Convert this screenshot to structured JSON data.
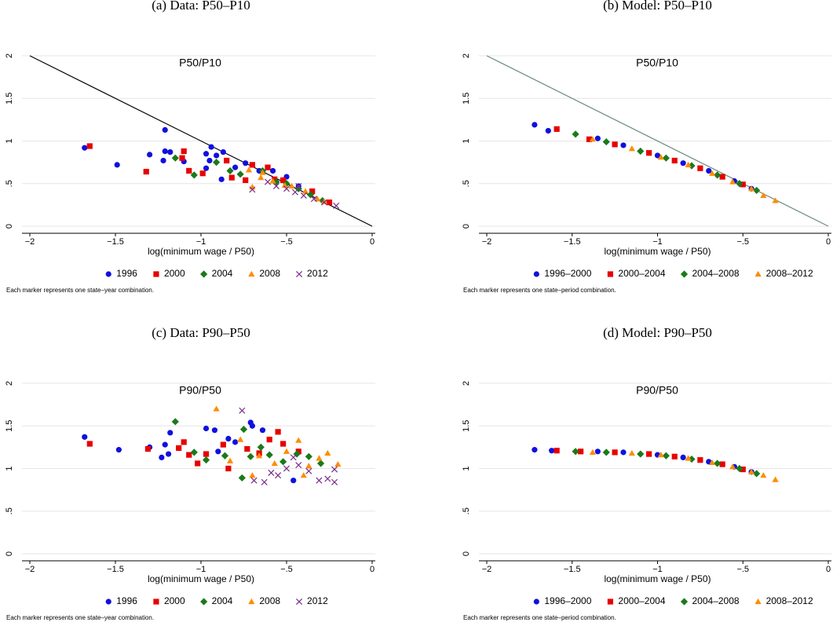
{
  "chart_data": [
    {
      "type": "scatter",
      "title": "(a) Data: P50–P10",
      "inner_label": "P50/P10",
      "xlabel": "log(minimum wage / P50)",
      "note": "Each marker represents one state–year combination.",
      "xlim": [
        -2,
        0
      ],
      "ylim": [
        0,
        2
      ],
      "xticks": [
        {
          "value": -2,
          "label": "−2"
        },
        {
          "value": -1.5,
          "label": "−1.5"
        },
        {
          "value": -1,
          "label": "−1"
        },
        {
          "value": -0.5,
          "label": "−.5"
        },
        0
      ],
      "yticks": [
        0,
        {
          "value": 0.5,
          "label": ".5"
        },
        1,
        1.5,
        2
      ],
      "grid": true,
      "reference_line": {
        "x": [
          -2,
          0
        ],
        "y": [
          2,
          0
        ],
        "color": "#000000"
      },
      "series": [
        {
          "name": "1996",
          "color": "#1010e0",
          "marker": "circle",
          "x": [
            -1.68,
            -1.49,
            -1.3,
            -1.22,
            -1.21,
            -1.21,
            -1.18,
            -1.1,
            -0.97,
            -0.95,
            -0.94,
            -0.91,
            -0.87,
            -0.88,
            -0.8,
            -0.74,
            -0.66,
            -0.58,
            -0.5,
            -0.43,
            -0.97
          ],
          "y": [
            0.92,
            0.72,
            0.84,
            0.77,
            1.13,
            0.88,
            0.87,
            0.76,
            0.85,
            0.77,
            0.93,
            0.83,
            0.87,
            0.55,
            0.69,
            0.74,
            0.65,
            0.65,
            0.58,
            0.47,
            0.68
          ]
        },
        {
          "name": "2000",
          "color": "#e80000",
          "marker": "square",
          "x": [
            -1.65,
            -1.32,
            -1.1,
            -1.11,
            -1.07,
            -0.99,
            -0.85,
            -0.82,
            -0.7,
            -0.74,
            -0.61,
            -0.57,
            -0.52,
            -0.35,
            -0.25
          ],
          "y": [
            0.94,
            0.64,
            0.88,
            0.8,
            0.65,
            0.62,
            0.77,
            0.57,
            0.72,
            0.54,
            0.69,
            0.55,
            0.54,
            0.41,
            0.28
          ]
        },
        {
          "name": "2004",
          "color": "#1a7a1a",
          "marker": "diamond",
          "x": [
            -1.15,
            -1.04,
            -0.91,
            -0.83,
            -0.77,
            -0.64,
            -0.56,
            -0.5,
            -0.43,
            -0.36,
            -0.29
          ],
          "y": [
            0.8,
            0.6,
            0.75,
            0.65,
            0.61,
            0.65,
            0.52,
            0.5,
            0.44,
            0.37,
            0.3
          ]
        },
        {
          "name": "2008",
          "color": "#ff8c00",
          "marker": "triangle",
          "x": [
            -0.72,
            -0.64,
            -0.58,
            -0.51,
            -0.47,
            -0.39,
            -0.32,
            -0.28,
            -0.7,
            -0.65
          ],
          "y": [
            0.66,
            0.63,
            0.53,
            0.48,
            0.47,
            0.41,
            0.32,
            0.29,
            0.46,
            0.57
          ]
        },
        {
          "name": "2012",
          "color": "#7a2a8a",
          "marker": "x",
          "x": [
            -0.61,
            -0.56,
            -0.5,
            -0.45,
            -0.4,
            -0.34,
            -0.28,
            -0.21,
            -0.7,
            -0.43
          ],
          "y": [
            0.52,
            0.47,
            0.44,
            0.4,
            0.36,
            0.32,
            0.28,
            0.24,
            0.43,
            0.47
          ]
        }
      ]
    },
    {
      "type": "scatter",
      "title": "(b) Model: P50–P10",
      "inner_label": "P50/P10",
      "xlabel": "log(minimum wage / P50)",
      "note": "Each marker represents one state–period combination.",
      "xlim": [
        -2,
        0
      ],
      "ylim": [
        0,
        2
      ],
      "xticks": [
        {
          "value": -2,
          "label": "−2"
        },
        {
          "value": -1.5,
          "label": "−1.5"
        },
        {
          "value": -1,
          "label": "−1"
        },
        {
          "value": -0.5,
          "label": "−.5"
        },
        0
      ],
      "yticks": [
        0,
        {
          "value": 0.5,
          "label": ".5"
        },
        1,
        1.5,
        2
      ],
      "grid": true,
      "reference_line": {
        "x": [
          -2,
          0
        ],
        "y": [
          2,
          0
        ],
        "color": "#6e8a7e"
      },
      "series": [
        {
          "name": "1996–2000",
          "color": "#1010e0",
          "marker": "circle",
          "x": [
            -1.72,
            -1.64,
            -1.35,
            -1.2,
            -1.0,
            -0.85,
            -0.7,
            -0.55,
            -0.45
          ],
          "y": [
            1.19,
            1.12,
            1.03,
            0.95,
            0.83,
            0.74,
            0.65,
            0.53,
            0.44
          ]
        },
        {
          "name": "2000–2004",
          "color": "#e80000",
          "marker": "square",
          "x": [
            -1.59,
            -1.4,
            -1.25,
            -1.05,
            -0.9,
            -0.75,
            -0.62,
            -0.5
          ],
          "y": [
            1.14,
            1.02,
            0.96,
            0.86,
            0.77,
            0.68,
            0.58,
            0.49
          ]
        },
        {
          "name": "2004–2008",
          "color": "#1a7a1a",
          "marker": "diamond",
          "x": [
            -1.48,
            -1.3,
            -1.1,
            -0.95,
            -0.8,
            -0.65,
            -0.52,
            -0.42
          ],
          "y": [
            1.08,
            0.99,
            0.88,
            0.8,
            0.71,
            0.6,
            0.5,
            0.42
          ]
        },
        {
          "name": "2008–2012",
          "color": "#ff8c00",
          "marker": "triangle",
          "x": [
            -1.38,
            -1.15,
            -0.98,
            -0.82,
            -0.68,
            -0.56,
            -0.45,
            -0.38,
            -0.31
          ],
          "y": [
            1.02,
            0.91,
            0.81,
            0.72,
            0.62,
            0.52,
            0.44,
            0.36,
            0.3
          ]
        }
      ]
    },
    {
      "type": "scatter",
      "title": "(c) Data: P90–P50",
      "inner_label": "P90/P50",
      "xlabel": "log(minimum wage / P50)",
      "note": "Each marker represents one state–year combination.",
      "xlim": [
        -2,
        0
      ],
      "ylim": [
        0,
        2
      ],
      "xticks": [
        {
          "value": -2,
          "label": "−2"
        },
        {
          "value": -1.5,
          "label": "−1.5"
        },
        {
          "value": -1,
          "label": "−1"
        },
        {
          "value": -0.5,
          "label": "−.5"
        },
        0
      ],
      "yticks": [
        0,
        {
          "value": 0.5,
          "label": ".5"
        },
        1,
        1.5,
        2
      ],
      "grid": true,
      "series": [
        {
          "name": "1996",
          "color": "#1010e0",
          "marker": "circle",
          "x": [
            -1.68,
            -1.48,
            -1.3,
            -1.23,
            -1.21,
            -1.18,
            -0.97,
            -0.92,
            -0.9,
            -0.84,
            -0.8,
            -0.7,
            -0.64,
            -0.71,
            -0.46,
            -1.19
          ],
          "y": [
            1.37,
            1.22,
            1.25,
            1.13,
            1.28,
            1.42,
            1.47,
            1.45,
            1.2,
            1.35,
            1.31,
            1.5,
            1.45,
            1.54,
            0.86,
            1.17
          ]
        },
        {
          "name": "2000",
          "color": "#e80000",
          "marker": "square",
          "x": [
            -1.65,
            -1.31,
            -1.13,
            -1.1,
            -1.07,
            -1.02,
            -0.97,
            -0.87,
            -0.84,
            -0.73,
            -0.66,
            -0.6,
            -0.52,
            -0.43,
            -0.55
          ],
          "y": [
            1.29,
            1.23,
            1.24,
            1.31,
            1.16,
            1.06,
            1.17,
            1.28,
            1.0,
            1.23,
            1.18,
            1.34,
            1.29,
            1.2,
            1.43
          ]
        },
        {
          "name": "2004",
          "color": "#1a7a1a",
          "marker": "diamond",
          "x": [
            -1.15,
            -1.04,
            -0.86,
            -0.76,
            -0.75,
            -0.71,
            -0.65,
            -0.6,
            -0.52,
            -0.44,
            -0.37,
            -0.3,
            -0.97
          ],
          "y": [
            1.55,
            1.19,
            1.15,
            0.89,
            1.46,
            1.14,
            1.25,
            1.16,
            1.08,
            1.17,
            1.14,
            1.06,
            1.1
          ]
        },
        {
          "name": "2008",
          "color": "#ff8c00",
          "marker": "triangle",
          "x": [
            -0.91,
            -0.77,
            -0.7,
            -0.66,
            -0.57,
            -0.5,
            -0.43,
            -0.37,
            -0.31,
            -0.26,
            -0.2,
            -0.4,
            -0.83
          ],
          "y": [
            1.7,
            1.34,
            0.92,
            1.15,
            1.06,
            1.2,
            1.33,
            1.03,
            1.12,
            1.18,
            1.05,
            0.92,
            1.09
          ]
        },
        {
          "name": "2012",
          "color": "#7a2a8a",
          "marker": "x",
          "x": [
            -0.76,
            -0.69,
            -0.63,
            -0.59,
            -0.55,
            -0.5,
            -0.46,
            -0.37,
            -0.31,
            -0.26,
            -0.22,
            -0.22,
            -0.43
          ],
          "y": [
            1.68,
            0.86,
            0.84,
            0.95,
            0.92,
            1.0,
            1.13,
            0.97,
            0.86,
            0.88,
            0.84,
            0.99,
            1.04
          ]
        }
      ]
    },
    {
      "type": "scatter",
      "title": "(d) Model: P90–P50",
      "inner_label": "P90/P50",
      "xlabel": "log(minimum wage / P50)",
      "note": "Each marker represents one state–period combination.",
      "xlim": [
        -2,
        0
      ],
      "ylim": [
        0,
        2
      ],
      "xticks": [
        {
          "value": -2,
          "label": "−2"
        },
        {
          "value": -1.5,
          "label": "−1.5"
        },
        {
          "value": -1,
          "label": "−1"
        },
        {
          "value": -0.5,
          "label": "−.5"
        },
        0
      ],
      "yticks": [
        0,
        {
          "value": 0.5,
          "label": ".5"
        },
        1,
        1.5,
        2
      ],
      "grid": true,
      "series": [
        {
          "name": "1996–2000",
          "color": "#1010e0",
          "marker": "circle",
          "x": [
            -1.72,
            -1.62,
            -1.35,
            -1.2,
            -1.0,
            -0.85,
            -0.7,
            -0.55,
            -0.45
          ],
          "y": [
            1.22,
            1.21,
            1.2,
            1.19,
            1.16,
            1.13,
            1.08,
            1.02,
            0.96
          ]
        },
        {
          "name": "2000–2004",
          "color": "#e80000",
          "marker": "square",
          "x": [
            -1.59,
            -1.45,
            -1.25,
            -1.05,
            -0.9,
            -0.75,
            -0.62,
            -0.5
          ],
          "y": [
            1.21,
            1.2,
            1.19,
            1.17,
            1.14,
            1.1,
            1.05,
            0.99
          ]
        },
        {
          "name": "2004–2008",
          "color": "#1a7a1a",
          "marker": "diamond",
          "x": [
            -1.48,
            -1.3,
            -1.1,
            -0.95,
            -0.8,
            -0.65,
            -0.52,
            -0.42
          ],
          "y": [
            1.2,
            1.19,
            1.17,
            1.15,
            1.11,
            1.06,
            1.0,
            0.94
          ]
        },
        {
          "name": "2008–2012",
          "color": "#ff8c00",
          "marker": "triangle",
          "x": [
            -1.38,
            -1.15,
            -0.98,
            -0.82,
            -0.68,
            -0.56,
            -0.45,
            -0.38,
            -0.31
          ],
          "y": [
            1.19,
            1.18,
            1.16,
            1.12,
            1.07,
            1.02,
            0.96,
            0.92,
            0.87
          ]
        }
      ]
    }
  ]
}
